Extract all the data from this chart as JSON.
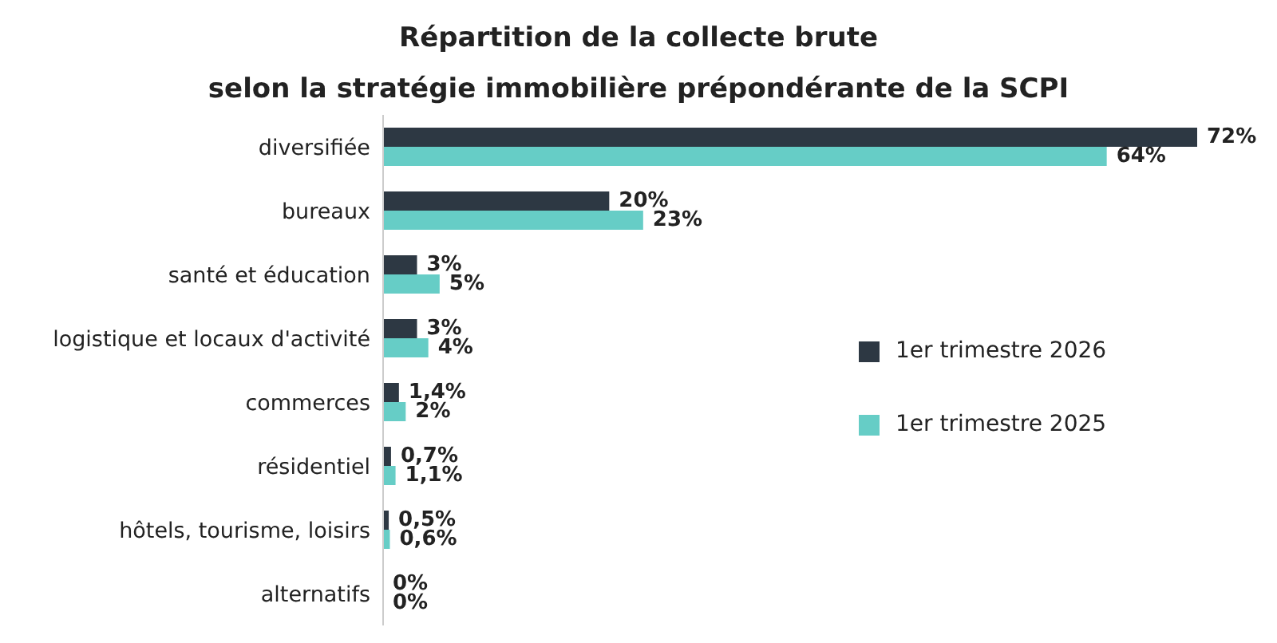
{
  "chart_data": {
    "type": "bar",
    "orientation": "horizontal",
    "title": "Répartition de la collecte brute",
    "subtitle": "selon la stratégie immobilière prépondérante de la SCPI",
    "categories": [
      "diversifiée",
      "bureaux",
      "santé et éducation",
      "logistique et locaux d'activité",
      "commerces",
      "résidentiel",
      "hôtels, tourisme, loisirs",
      "alternatifs"
    ],
    "series": [
      {
        "name": "1er trimestre 2026",
        "color": "#2d3843",
        "values": [
          72,
          20,
          3,
          3,
          1.4,
          0.7,
          0.5,
          0
        ],
        "value_labels": [
          "72%",
          "20%",
          "3%",
          "3%",
          "1,4%",
          "0,7%",
          "0,5%",
          "0%"
        ]
      },
      {
        "name": "1er trimestre 2025",
        "color": "#66cdc6",
        "values": [
          64,
          23,
          5,
          4,
          2,
          1.1,
          0.6,
          0
        ],
        "value_labels": [
          "64%",
          "23%",
          "5%",
          "4%",
          "2%",
          "1,1%",
          "0,6%",
          "0%"
        ]
      }
    ],
    "legend": "right",
    "grid": false
  }
}
